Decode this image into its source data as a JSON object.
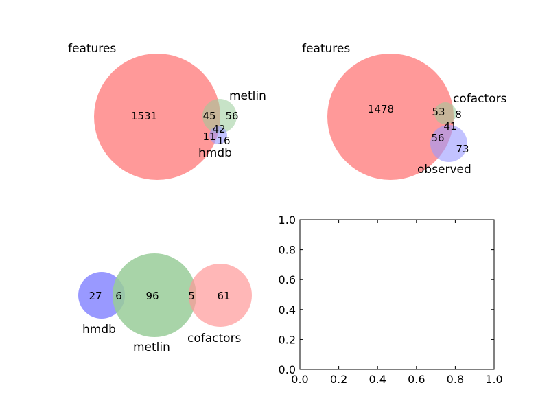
{
  "figure": {
    "background": "#ffffff"
  },
  "chart_data": [
    {
      "type": "venn",
      "panel": "top-left",
      "sets": [
        {
          "name": "features",
          "color": "#ff9999"
        },
        {
          "name": "metlin",
          "color": "#99cc99"
        },
        {
          "name": "hmdb",
          "color": "#9999ff"
        }
      ],
      "regions": [
        {
          "sets": [
            "features"
          ],
          "value": 1531
        },
        {
          "sets": [
            "features",
            "metlin"
          ],
          "value": 45
        },
        {
          "sets": [
            "metlin"
          ],
          "value": 56
        },
        {
          "sets": [
            "features",
            "metlin",
            "hmdb"
          ],
          "value": 42
        },
        {
          "sets": [
            "features",
            "hmdb"
          ],
          "value": 11
        },
        {
          "sets": [
            "hmdb"
          ],
          "value": 16
        }
      ]
    },
    {
      "type": "venn",
      "panel": "top-right",
      "sets": [
        {
          "name": "features",
          "color": "#ff9999"
        },
        {
          "name": "cofactors",
          "color": "#99cc99"
        },
        {
          "name": "observed",
          "color": "#9999ff"
        }
      ],
      "regions": [
        {
          "sets": [
            "features"
          ],
          "value": 1478
        },
        {
          "sets": [
            "features",
            "cofactors"
          ],
          "value": 53
        },
        {
          "sets": [
            "cofactors"
          ],
          "value": 8
        },
        {
          "sets": [
            "features",
            "cofactors",
            "observed"
          ],
          "value": 41
        },
        {
          "sets": [
            "features",
            "observed"
          ],
          "value": 56
        },
        {
          "sets": [
            "observed"
          ],
          "value": 73
        }
      ]
    },
    {
      "type": "venn",
      "panel": "bottom-left",
      "sets": [
        {
          "name": "hmdb",
          "color": "#9999ff"
        },
        {
          "name": "metlin",
          "color": "#99cc99"
        },
        {
          "name": "cofactors",
          "color": "#ff9999"
        }
      ],
      "regions": [
        {
          "sets": [
            "hmdb"
          ],
          "value": 27
        },
        {
          "sets": [
            "hmdb",
            "metlin"
          ],
          "value": 6
        },
        {
          "sets": [
            "metlin"
          ],
          "value": 96
        },
        {
          "sets": [
            "metlin",
            "cofactors"
          ],
          "value": 5
        },
        {
          "sets": [
            "cofactors"
          ],
          "value": 61
        }
      ]
    },
    {
      "type": "empty-axes",
      "panel": "bottom-right",
      "xlim": [
        0.0,
        1.0
      ],
      "ylim": [
        0.0,
        1.0
      ],
      "xticks": [
        "0.0",
        "0.2",
        "0.4",
        "0.6",
        "0.8",
        "1.0"
      ],
      "yticks": [
        "0.0",
        "0.2",
        "0.4",
        "0.6",
        "0.8",
        "1.0"
      ],
      "grid": false
    }
  ]
}
